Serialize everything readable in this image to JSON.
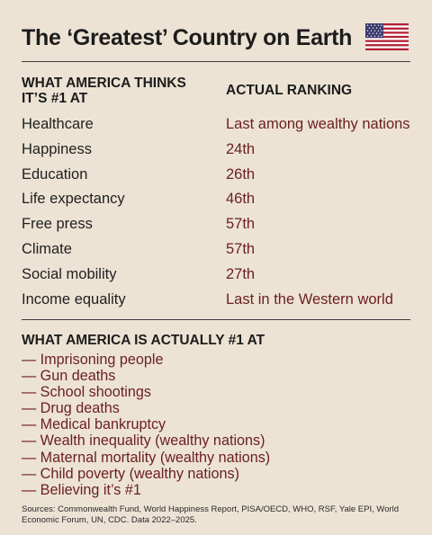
{
  "title": "The ‘Greatest’ Country on Earth",
  "flag_icon": "us-flag-icon",
  "columns": {
    "left": "WHAT AMERICA THINKS IT’S #1 AT",
    "right": "ACTUAL RANKING"
  },
  "rankings": [
    {
      "label": "Healthcare",
      "rank": "Last among wealthy nations"
    },
    {
      "label": "Happiness",
      "rank": "24th"
    },
    {
      "label": "Education",
      "rank": "26th"
    },
    {
      "label": "Life expectancy",
      "rank": "46th"
    },
    {
      "label": "Free press",
      "rank": "57th"
    },
    {
      "label": "Climate",
      "rank": "57th"
    },
    {
      "label": "Social mobility",
      "rank": "27th"
    },
    {
      "label": "Income equality",
      "rank": "Last in the Western world"
    }
  ],
  "actual_heading": "WHAT AMERICA IS ACTUALLY #1 AT",
  "actual_items": [
    "— Imprisoning people",
    "— Gun deaths",
    "— School shootings",
    "— Drug deaths",
    "— Medical bankruptcy",
    "— Wealth inequality (wealthy nations)",
    "— Maternal mortality (wealthy nations)",
    "— Child poverty (wealthy nations)",
    "— Believing it’s #1"
  ],
  "sources": "Sources: Commonwealth Fund, World Happiness Report, PISA/OECD, WHO, RSF, Yale EPI, World Economic Forum, UN, CDC. Data 2022–2025.",
  "colors": {
    "background": "#ece3d4",
    "accent": "#6b1f1f",
    "flag_red": "#b22234",
    "flag_blue": "#3c3b6e"
  }
}
